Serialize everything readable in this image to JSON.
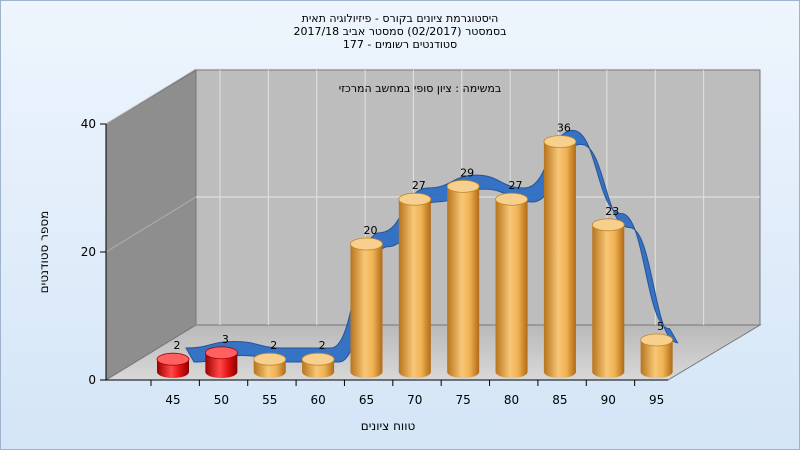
{
  "chart_data": {
    "type": "bar",
    "title_lines": [
      "היסטוגרמת ציונים בקורס - פיזיולוגיה תאית",
      "בסמסטר  (02/2017)  סמסטר אביב 2017/18",
      "סטודנטים רשומים - 177"
    ],
    "subtitle": "במשימה : ציון סופי במחשב המרכזי",
    "xlabel": "טווח ציונים",
    "ylabel": "מספר סטודנטים",
    "categories": [
      "45",
      "50",
      "55",
      "60",
      "65",
      "70",
      "75",
      "80",
      "85",
      "90",
      "95"
    ],
    "values": [
      2,
      3,
      2,
      2,
      20,
      27,
      29,
      27,
      36,
      23,
      5
    ],
    "bar_colors": [
      "#e01010",
      "#e01010",
      "#e8a030",
      "#e8a030",
      "#e8a030",
      "#e8a030",
      "#e8a030",
      "#e8a030",
      "#e8a030",
      "#e8a030",
      "#e8a030"
    ],
    "ylim": [
      0,
      40
    ],
    "yticks": [
      0,
      20,
      40
    ],
    "grid": true,
    "curve_color": "#2f6fc4"
  }
}
